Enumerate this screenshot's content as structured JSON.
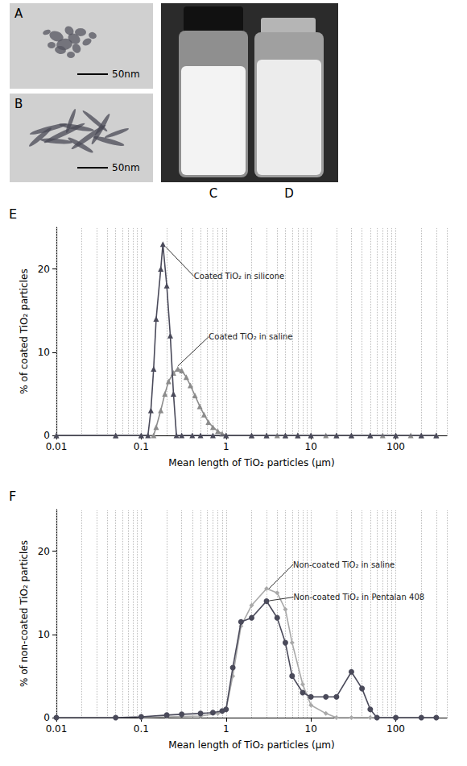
{
  "figure": {
    "panels": [
      {
        "label": "A",
        "scale_bar": "50nm"
      },
      {
        "label": "B",
        "scale_bar": "50nm"
      },
      {
        "label": "C"
      },
      {
        "label": "D"
      }
    ]
  },
  "chart_data": [
    {
      "title": "E",
      "type": "line",
      "log": "x",
      "grid": true,
      "xlabel": "Mean length of TiO₂ particles (μm)",
      "ylabel": "% of coated TiO₂ particles",
      "xlim": [
        0.01,
        400
      ],
      "xticks": [
        0.01,
        0.1,
        1,
        10,
        100
      ],
      "ylim": [
        0,
        25
      ],
      "yticks": [
        0,
        10,
        20
      ],
      "series": [
        {
          "name": "Coated TiO₂ in saline",
          "color": "#8c8c8c",
          "marker": "triangle",
          "x": [
            0.01,
            0.05,
            0.1,
            0.14,
            0.15,
            0.17,
            0.19,
            0.21,
            0.24,
            0.27,
            0.3,
            0.34,
            0.38,
            0.43,
            0.49,
            0.55,
            0.62,
            0.7,
            0.8,
            0.9,
            1,
            2,
            3,
            4,
            5,
            7,
            10,
            15,
            20,
            30,
            50,
            70,
            100,
            150,
            200,
            300
          ],
          "values": [
            0,
            0,
            0,
            0,
            1,
            3,
            5,
            6.5,
            7.5,
            8,
            7.8,
            7,
            6,
            4.8,
            3.5,
            2.5,
            1.6,
            1,
            0.5,
            0.2,
            0,
            0,
            0,
            0,
            0,
            0,
            0,
            0,
            0,
            0,
            0,
            0,
            0,
            0,
            0,
            0
          ]
        },
        {
          "name": "Coated TiO₂ in silicone",
          "color": "#4a4a5a",
          "marker": "triangle",
          "x": [
            0.01,
            0.05,
            0.1,
            0.12,
            0.13,
            0.14,
            0.15,
            0.17,
            0.18,
            0.2,
            0.22,
            0.24,
            0.26,
            0.3,
            0.4,
            0.5,
            0.7,
            1,
            2,
            3,
            5,
            7,
            10,
            20,
            30,
            50,
            100,
            200,
            300
          ],
          "values": [
            0,
            0,
            0,
            0,
            3,
            8,
            14,
            20,
            23,
            18,
            12,
            5,
            0,
            0,
            0,
            0,
            0,
            0,
            0,
            0,
            0,
            0,
            0,
            0,
            0,
            0,
            0,
            0,
            0
          ]
        }
      ]
    },
    {
      "title": "F",
      "type": "line",
      "log": "x",
      "grid": true,
      "xlabel": "Mean length of TiO₂ particles (μm)",
      "ylabel": "% of non-coated TiO₂ particles",
      "xlim": [
        0.01,
        400
      ],
      "xticks": [
        0.01,
        0.1,
        1,
        10,
        100
      ],
      "ylim": [
        0,
        25
      ],
      "yticks": [
        0,
        10,
        20
      ],
      "series": [
        {
          "name": "Non-coated TiO₂ in saline",
          "color": "#a9a9a9",
          "marker": "diamond",
          "x": [
            0.1,
            0.2,
            0.5,
            0.8,
            1,
            1.2,
            1.5,
            2,
            3,
            4,
            5,
            6,
            8,
            10,
            15,
            20,
            30,
            50,
            100,
            200,
            300
          ],
          "values": [
            0,
            0.1,
            0.2,
            0.5,
            1,
            5,
            11,
            13.5,
            15.5,
            15,
            13,
            9,
            4,
            1.5,
            0.5,
            0,
            0,
            0,
            0,
            0,
            0
          ]
        },
        {
          "name": "Non-coated TiO₂ in Pentalan 408",
          "color": "#4a4a5a",
          "marker": "circle",
          "x": [
            0.01,
            0.05,
            0.1,
            0.2,
            0.3,
            0.5,
            0.7,
            0.9,
            1,
            1.2,
            1.5,
            2,
            3,
            4,
            5,
            6,
            8,
            10,
            15,
            20,
            30,
            40,
            50,
            60,
            100,
            200,
            300
          ],
          "values": [
            0,
            0,
            0.1,
            0.3,
            0.4,
            0.5,
            0.6,
            0.8,
            1,
            6,
            11.5,
            12,
            14,
            12,
            9,
            5,
            3,
            2.5,
            2.5,
            2.5,
            5.5,
            3.5,
            1,
            0,
            0,
            0,
            0
          ]
        }
      ]
    }
  ]
}
